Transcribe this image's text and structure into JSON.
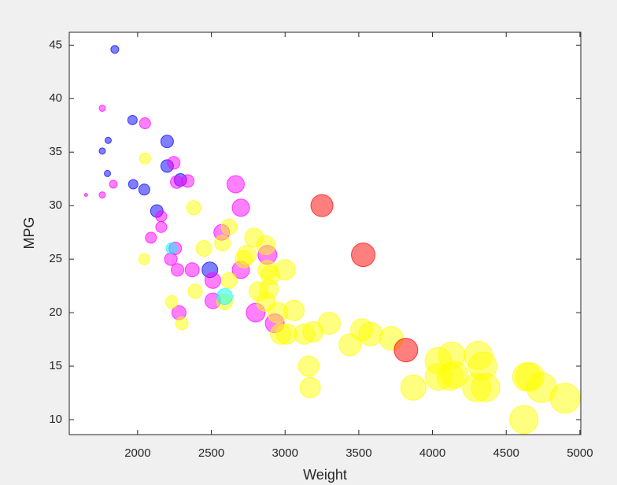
{
  "chart_data": {
    "type": "scatter",
    "x_label": "Weight",
    "y_label": "MPG",
    "xlim": [
      1536,
      5006
    ],
    "ylim": [
      8.6,
      46.2
    ],
    "xticks": [
      2000,
      2500,
      3000,
      3500,
      4000,
      4500,
      5000
    ],
    "yticks": [
      10,
      15,
      20,
      25,
      30,
      35,
      40,
      45
    ],
    "series": [
      {
        "color": "#0000ff",
        "x": [
          1845,
          1965,
          1800,
          1760,
          1795,
          1970,
          2045,
          2200,
          2200,
          2290,
          2130,
          2490
        ],
        "values": [
          44.6,
          38,
          36.1,
          35.1,
          33,
          32,
          31.5,
          36,
          33.7,
          32.4,
          29.5,
          24
        ],
        "sizes": [
          5,
          6,
          4,
          4,
          4,
          6,
          7,
          8,
          8,
          8,
          8,
          10
        ]
      },
      {
        "color": "#ff00ff",
        "x": [
          1760,
          2050,
          2245,
          1835,
          1760,
          1650,
          2265,
          2340,
          2665,
          2700,
          2160,
          2160,
          2090,
          2255,
          2570,
          2880,
          2225,
          2270,
          2370,
          2700,
          2510,
          2510,
          2280,
          2800,
          2930
        ],
        "values": [
          39.1,
          37.7,
          34,
          32,
          31,
          31,
          32.2,
          32.3,
          32,
          29.8,
          29,
          28,
          27,
          26,
          27.5,
          25.4,
          25,
          24,
          24,
          24,
          23,
          21.1,
          20,
          20,
          19
        ],
        "sizes": [
          4,
          7,
          8,
          5,
          4,
          2,
          8,
          8,
          11,
          11,
          7,
          7,
          7,
          8,
          10,
          12,
          8,
          8,
          9,
          11,
          10,
          10,
          9,
          12,
          12
        ]
      },
      {
        "color": "#ffff00",
        "x": [
          2050,
          2045,
          2380,
          2620,
          2575,
          2450,
          2620,
          2390,
          2230,
          2300,
          2590,
          2790,
          2870,
          2740,
          2720,
          2880,
          2900,
          3000,
          2820,
          2890,
          2870,
          2950,
          3060,
          2970,
          3010,
          3130,
          3190,
          3300,
          3520,
          3580,
          3440,
          3720,
          3160,
          3170,
          3870,
          4040,
          4130,
          4040,
          4120,
          4150,
          4310,
          4340,
          4300,
          4360,
          4620,
          4640,
          4660,
          4740,
          4900
        ],
        "values": [
          34.4,
          25,
          29.8,
          28,
          26.5,
          26,
          23,
          22,
          21,
          19,
          21,
          27,
          26.3,
          25.4,
          25,
          24,
          23.5,
          24,
          22,
          22.2,
          21,
          20,
          20.2,
          18,
          18,
          18,
          18.2,
          19,
          18.4,
          18,
          17,
          17.6,
          15,
          13,
          13,
          15.5,
          16,
          14,
          14,
          14.2,
          16,
          15,
          13,
          13,
          10,
          14,
          14,
          13,
          12
        ],
        "sizes": [
          7,
          7,
          9,
          10,
          10,
          10,
          10,
          9,
          8,
          8,
          10,
          12,
          12,
          12,
          11,
          12,
          12,
          13,
          12,
          12,
          12,
          13,
          13,
          13,
          13,
          13,
          13,
          14,
          14,
          15,
          14,
          15,
          13,
          13,
          16,
          17,
          17,
          17,
          17,
          17,
          18,
          18,
          18,
          18,
          18,
          18,
          18,
          19,
          19
        ]
      },
      {
        "color": "#ff0000",
        "x": [
          3250,
          3530,
          3820
        ],
        "values": [
          30,
          25.4,
          16.5
        ],
        "sizes": [
          14,
          15,
          15
        ]
      },
      {
        "color": "#00ffff",
        "x": [
          2230,
          2590
        ],
        "values": [
          26,
          21.5
        ],
        "sizes": [
          7,
          10
        ]
      }
    ]
  }
}
